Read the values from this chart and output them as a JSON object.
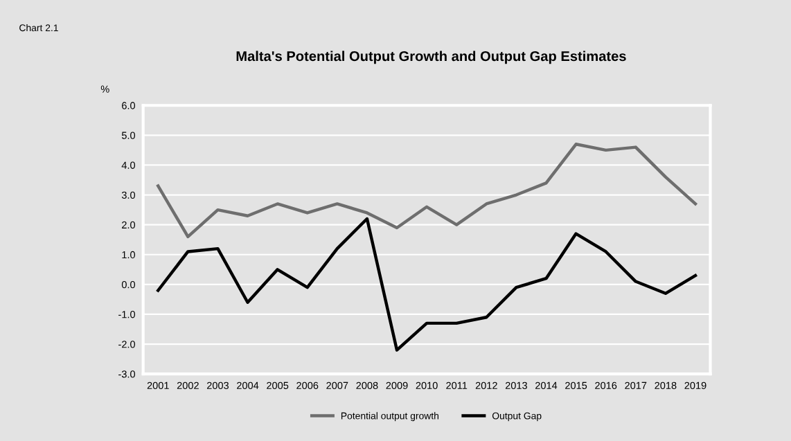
{
  "chart_data": {
    "type": "line",
    "title": "Malta's Potential Output Growth and Output Gap Estimates",
    "ylabel": "%",
    "annotations": [
      "Chart 2.1"
    ],
    "categories": [
      "2001",
      "2002",
      "2003",
      "2004",
      "2005",
      "2006",
      "2007",
      "2008",
      "2009",
      "2010",
      "2011",
      "2012",
      "2013",
      "2014",
      "2015",
      "2016",
      "2017",
      "2018",
      "2019"
    ],
    "series": [
      {
        "name": "Potential output growth",
        "color": "#6e6e6e",
        "values": [
          3.3,
          1.6,
          2.5,
          2.3,
          2.7,
          2.4,
          2.7,
          2.4,
          1.9,
          2.6,
          2.0,
          2.7,
          3.0,
          3.4,
          4.7,
          4.5,
          4.6,
          3.6,
          2.7
        ]
      },
      {
        "name": "Output Gap",
        "color": "#000000",
        "values": [
          -0.2,
          1.1,
          1.2,
          -0.6,
          0.5,
          -0.1,
          1.2,
          2.2,
          -2.2,
          -1.3,
          -1.3,
          -1.1,
          -0.1,
          0.2,
          1.7,
          1.1,
          0.1,
          -0.3,
          0.3
        ]
      }
    ],
    "ylim": [
      -3.0,
      6.0
    ],
    "yticks": [
      {
        "value": -3,
        "label": "-3.0"
      },
      {
        "value": -2,
        "label": "-2.0"
      },
      {
        "value": -1,
        "label": "-1.0"
      },
      {
        "value": 0,
        "label": "0.0"
      },
      {
        "value": 1,
        "label": "1.0"
      },
      {
        "value": 2,
        "label": "2.0"
      },
      {
        "value": 3,
        "label": "3.0"
      },
      {
        "value": 4,
        "label": "4.0"
      },
      {
        "value": 5,
        "label": "5.0"
      },
      {
        "value": 6,
        "label": "6.0"
      }
    ],
    "grid": "y",
    "legend": "bottom",
    "marker": "none",
    "line_style": "solid"
  }
}
